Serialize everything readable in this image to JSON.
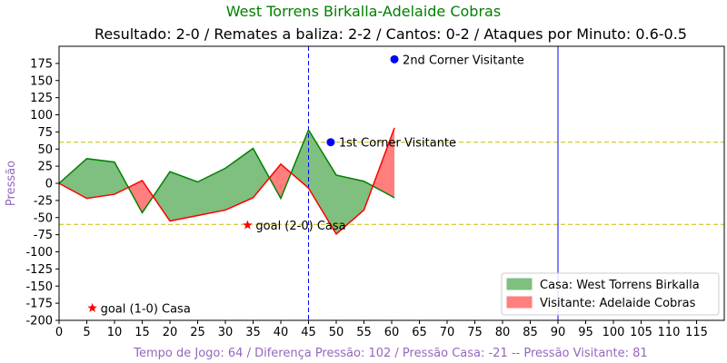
{
  "chart_data": {
    "type": "area",
    "title": "West Torrens Birkalla-Adelaide Cobras",
    "subtitle": "Resultado: 2-0 / Remates a baliza: 2-2 / Cantos: 0-2 / Ataques por Minuto: 0.6-0.5",
    "ylabel": "Pressão",
    "xlabel": "Tempo de Jogo: 64 / Diferença Pressão: 102 / Pressão Casa: -21 -- Pressão Visitante: 81",
    "xlim": [
      0,
      120
    ],
    "ylim": [
      -200,
      200
    ],
    "xticks": [
      0,
      5,
      10,
      15,
      20,
      25,
      30,
      35,
      40,
      45,
      50,
      55,
      60,
      65,
      70,
      75,
      80,
      85,
      90,
      95,
      100,
      105,
      110,
      115
    ],
    "yticks": [
      -200,
      -175,
      -150,
      -125,
      -100,
      -75,
      -50,
      -25,
      0,
      25,
      50,
      75,
      100,
      125,
      150,
      175
    ],
    "x": [
      0,
      5,
      10,
      15,
      20,
      25,
      30,
      35,
      40,
      45,
      50,
      55,
      60.5
    ],
    "series": [
      {
        "name": "Casa: West Torrens Birkalla",
        "color": "#008000",
        "fill": "#7fbf7f",
        "values": [
          0,
          36,
          31,
          -43,
          17,
          2,
          22,
          51,
          -22,
          78,
          12,
          3,
          -21
        ]
      },
      {
        "name": "Visitante: Adelaide Cobras",
        "color": "#ff0000",
        "fill": "#ff7f7f",
        "values": [
          0,
          -22,
          -16,
          4,
          -55,
          -47,
          -39,
          -21,
          28,
          -7,
          -74,
          -39,
          81
        ]
      }
    ],
    "hlines": [
      {
        "y": 60,
        "color": "#bfbf00",
        "style": "dashed"
      },
      {
        "y": -60,
        "color": "#bfbf00",
        "style": "dashed"
      }
    ],
    "vlines": [
      {
        "x": 45,
        "color": "#0000ff",
        "style": "dashed"
      },
      {
        "x": 90,
        "color": "#0000ff",
        "style": "solid"
      }
    ],
    "annotations": [
      {
        "text": "2nd Corner Visitante",
        "x": 60.5,
        "y": 181,
        "marker": "circle",
        "color": "#0000ff"
      },
      {
        "text": "1st Corner Visitante",
        "x": 49,
        "y": 60,
        "marker": "circle",
        "color": "#0000ff"
      },
      {
        "text": "goal (2-0) Casa",
        "x": 34,
        "y": -61,
        "marker": "star",
        "color": "#ff0000"
      },
      {
        "text": "goal (1-0) Casa",
        "x": 6,
        "y": -182,
        "marker": "star",
        "color": "#ff0000"
      }
    ],
    "legend": {
      "position": "bottom-right"
    },
    "colors": {
      "title": "#008000",
      "ylabel": "#9467bd",
      "xlabel": "#9467bd"
    }
  }
}
